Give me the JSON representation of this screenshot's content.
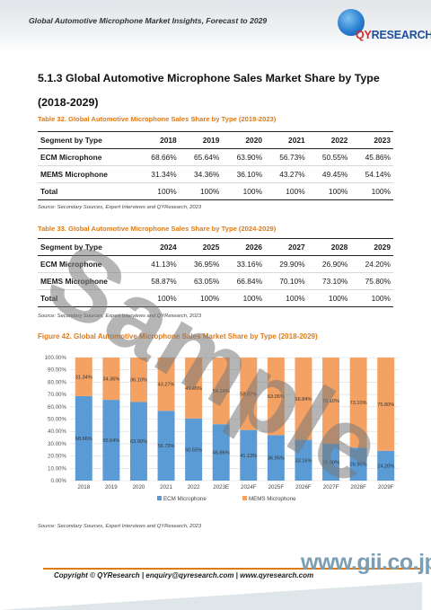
{
  "header": {
    "title": "Global Automotive Microphone Market Insights, Forecast to 2029",
    "logo_text": "QYRESEARCH"
  },
  "section": {
    "heading": "5.1.3  Global Automotive Microphone Sales Market Share by Type (2018-2029)"
  },
  "table32": {
    "caption": "Table 32.   Global Automotive Microphone Sales Share by Type (2018-2023)",
    "header": [
      "Segment by Type",
      "2018",
      "2019",
      "2020",
      "2021",
      "2022",
      "2023"
    ],
    "rows": [
      [
        "ECM Microphone",
        "68.66%",
        "65.64%",
        "63.90%",
        "56.73%",
        "50.55%",
        "45.86%"
      ],
      [
        "MEMS Microphone",
        "31.34%",
        "34.36%",
        "36.10%",
        "43.27%",
        "49.45%",
        "54.14%"
      ],
      [
        "Total",
        "100%",
        "100%",
        "100%",
        "100%",
        "100%",
        "100%"
      ]
    ],
    "source": "Source: Secondary Sources, Expert Interviews and QYResearch, 2023"
  },
  "table33": {
    "caption": "Table 33.   Global Automotive Microphone Sales Share by Type (2024-2029)",
    "header": [
      "Segment by Type",
      "2024",
      "2025",
      "2026",
      "2027",
      "2028",
      "2029"
    ],
    "rows": [
      [
        "ECM Microphone",
        "41.13%",
        "36.95%",
        "33.16%",
        "29.90%",
        "26.90%",
        "24.20%"
      ],
      [
        "MEMS Microphone",
        "58.87%",
        "63.05%",
        "66.84%",
        "70.10%",
        "73.10%",
        "75.80%"
      ],
      [
        "Total",
        "100%",
        "100%",
        "100%",
        "100%",
        "100%",
        "100%"
      ]
    ],
    "source": "Source: Secondary Sources, Expert Interviews and QYResearch, 2023"
  },
  "figure": {
    "caption": "Figure 42.   Global Automotive Microphone Sales Market Share by Type (2018-2029)",
    "source": "Source: Secondary Sources, Expert Interviews and QYResearch, 2023"
  },
  "chart_data": {
    "type": "bar",
    "stacked": true,
    "categories": [
      "2018",
      "2019",
      "2020",
      "2021",
      "2022",
      "2023E",
      "2024F",
      "2025F",
      "2026F",
      "2027F",
      "2028F",
      "2029F"
    ],
    "series": [
      {
        "name": "ECM Microphone",
        "color": "#5b9bd5",
        "values": [
          68.66,
          65.64,
          63.9,
          56.73,
          50.55,
          45.86,
          41.13,
          36.95,
          33.16,
          29.9,
          26.9,
          24.2
        ],
        "labels": [
          "68.66%",
          "65.64%",
          "63.90%",
          "56.73%",
          "50.55%",
          "45.86%",
          "41.13%",
          "36.95%",
          "33.16%",
          "29.90%",
          "26.90%",
          "24.20%"
        ]
      },
      {
        "name": "MEMS Microphone",
        "color": "#f4a264",
        "values": [
          31.34,
          34.36,
          36.1,
          43.27,
          49.45,
          54.14,
          58.87,
          63.05,
          66.84,
          70.1,
          73.1,
          75.8
        ],
        "labels": [
          "31.34%",
          "34.36%",
          "36.10%",
          "43.27%",
          "49.45%",
          "54.14%",
          "58.87%",
          "63.05%",
          "66.84%",
          "70.10%",
          "73.10%",
          "75.80%"
        ]
      }
    ],
    "y_ticks": [
      "0.00%",
      "10.00%",
      "20.00%",
      "30.00%",
      "40.00%",
      "50.00%",
      "60.00%",
      "70.00%",
      "80.00%",
      "90.00%",
      "100.00%"
    ],
    "ylim": [
      0,
      100
    ],
    "grid": true,
    "legend_position": "bottom"
  },
  "footer": {
    "copyright": "Copyright © QYResearch | enquiry@qyresearch.com | www.qyresearch.com",
    "site_logo": "www.gii.co.jp"
  },
  "watermark": "Sample"
}
